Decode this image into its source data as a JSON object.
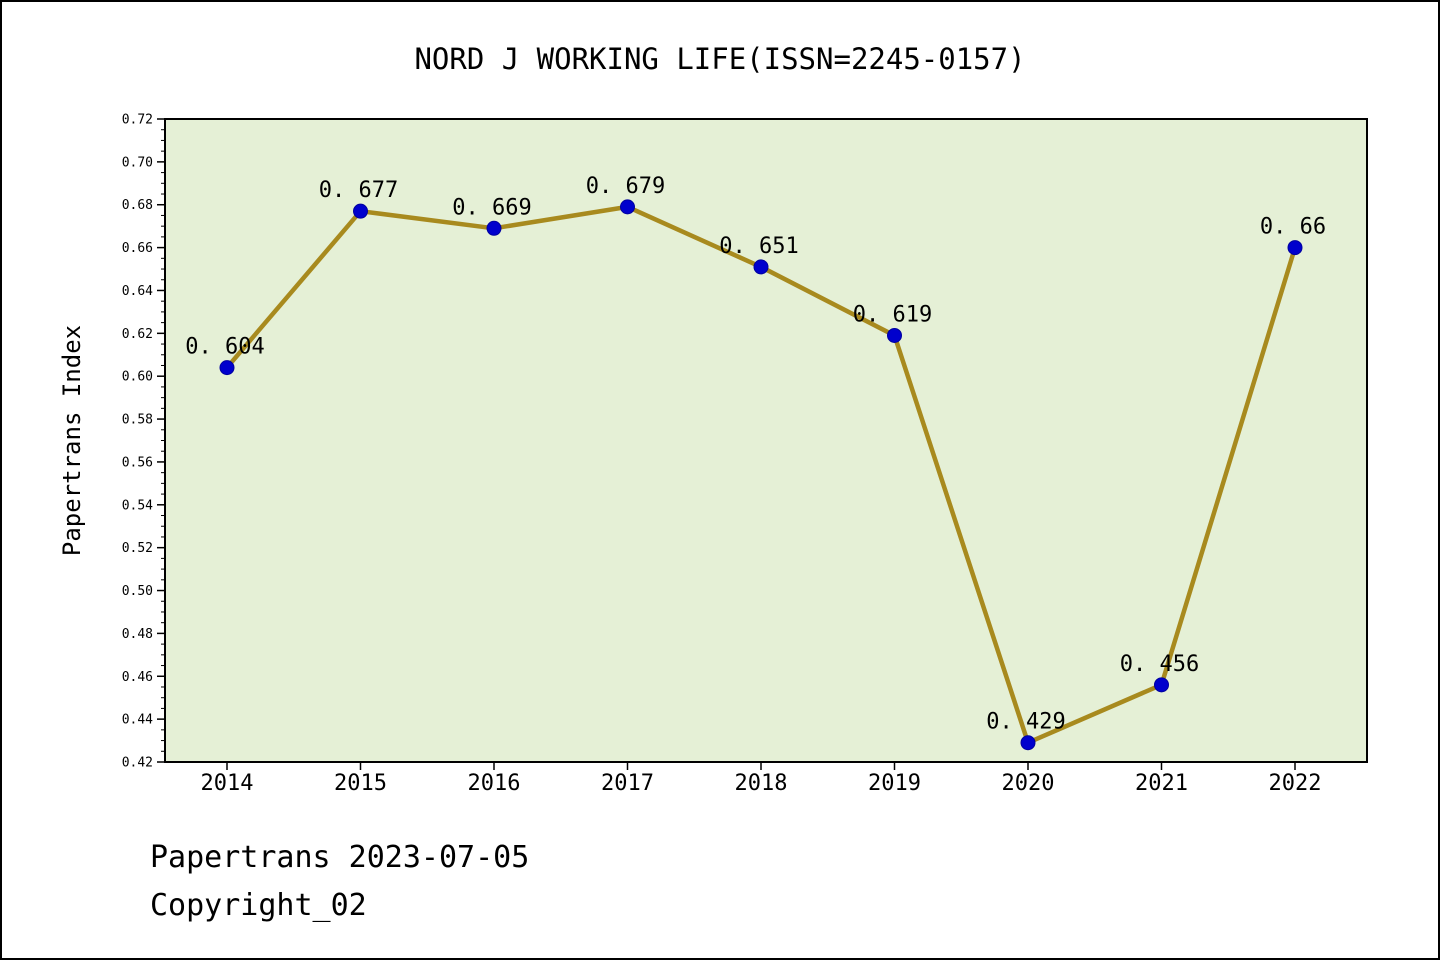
{
  "footer": {
    "date_line": "Papertrans 2023-07-05",
    "copyright_line": "Copyright_02"
  },
  "chart_data": {
    "type": "line",
    "title": "NORD J WORKING LIFE(ISSN=2245-0157)",
    "xlabel": "",
    "ylabel": "Papertrans Index",
    "categories": [
      "2014",
      "2015",
      "2016",
      "2017",
      "2018",
      "2019",
      "2020",
      "2021",
      "2022"
    ],
    "values": [
      0.604,
      0.677,
      0.669,
      0.679,
      0.651,
      0.619,
      0.429,
      0.456,
      0.66
    ],
    "point_labels": [
      "0. 604",
      "0. 677",
      "0. 669",
      "0. 679",
      "0. 651",
      "0. 619",
      "0. 429",
      "0. 456",
      "0. 66"
    ],
    "ylim": [
      0.42,
      0.72
    ],
    "ytick_step": 0.02,
    "ytick_minor": 0.005,
    "grid": false,
    "legend": "none",
    "colors": {
      "line": "#A88A1E",
      "marker": "#0000CD",
      "marker_edge": "#0000A0",
      "plot_bg": "#E5F0D6",
      "axis": "#000000",
      "text": "#000000"
    }
  }
}
